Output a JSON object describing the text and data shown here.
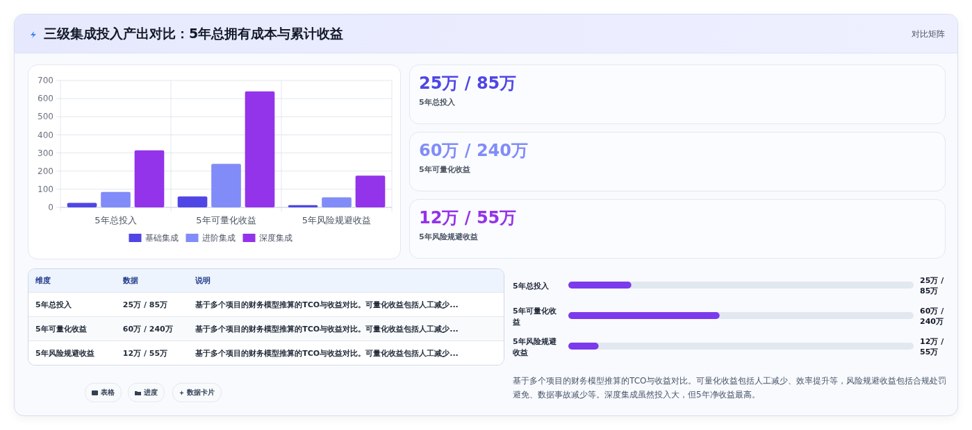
{
  "chart_data": [
    {
      "type": "other",
      "title": "三级集成投入产出对比：5年总拥有成本与累计收益",
      "annotations": [
        "对比矩阵"
      ]
    },
    {
      "type": "bar",
      "categories": [
        "5年总投入",
        "5年可量化收益",
        "5年风险规避收益"
      ],
      "series": [
        {
          "name": "基础集成",
          "color": "#4f46e5",
          "values": [
            25,
            60,
            12
          ]
        },
        {
          "name": "进阶集成",
          "color": "#818cf8",
          "values": [
            85,
            240,
            55
          ]
        },
        {
          "name": "深度集成",
          "color": "#9333ea",
          "values": [
            315,
            640,
            175
          ]
        }
      ],
      "ylim": [
        0,
        700
      ],
      "yticks": [
        0,
        100,
        200,
        300,
        400,
        500,
        600,
        700
      ],
      "grid": true,
      "legend": "bottom"
    },
    {
      "type": "other",
      "annotations": [
        "25万 / 85万",
        "5年总投入",
        "60万 / 240万",
        "5年可量化收益",
        "12万 / 55万",
        "5年风险规避收益"
      ]
    },
    {
      "type": "other",
      "annotations": [
        "维度",
        "数据",
        "说明",
        "5年总投入",
        "25万 / 85万",
        "基于多个项目的财务模型推算的TCO与收益对比。可量化收益包括人工减少...",
        "5年可量化收益",
        "60万 / 240万",
        "基于多个项目的财务模型推算的TCO与收益对比。可量化收益包括人工减少...",
        "5年风险规避收益",
        "12万 / 55万",
        "基于多个项目的财务模型推算的TCO与收益对比。可量化收益包括人工减少..."
      ]
    },
    {
      "type": "bar",
      "orientation": "horizontal",
      "xlim": [
        0,
        137
      ],
      "categories": [
        "5年总投入",
        "5年可量化收益",
        "5年风险规避收益"
      ],
      "values": [
        25,
        60,
        12
      ],
      "color": "#7c3aed",
      "value_labels": [
        "25万 / 85万",
        "60万 / 240万",
        "12万 / 55万"
      ],
      "annotations": [
        "基于多个项目的财务模型推算的TCO与收益对比。可量化收益包括人工减少、效率提升等，风险规避收益包括合规处罚避免、数据事故减少等。深度集成虽然投入大，但5年净收益最高。"
      ]
    },
    {
      "type": "other",
      "annotations": [
        "表格",
        "进度",
        "数据卡片"
      ]
    }
  ]
}
